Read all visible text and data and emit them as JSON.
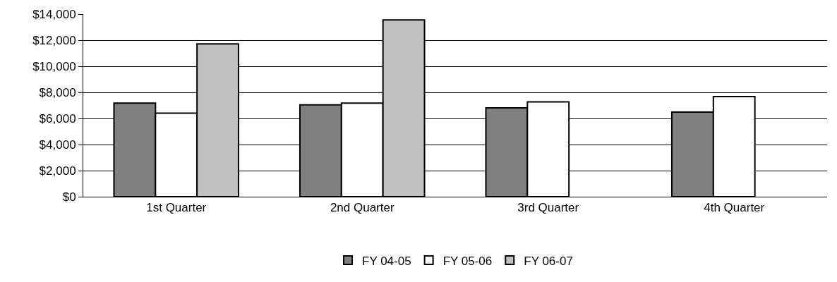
{
  "chart_data": {
    "type": "bar",
    "categories": [
      "1st Quarter",
      "2nd Quarter",
      "3rd Quarter",
      "4th Quarter"
    ],
    "series": [
      {
        "name": "FY 04-05",
        "color": "#808080",
        "values": [
          7170,
          7040,
          6810,
          6480
        ]
      },
      {
        "name": "FY 05-06",
        "color": "#ffffff",
        "values": [
          6400,
          7170,
          7270,
          7680
        ]
      },
      {
        "name": "FY 06-07",
        "color": "#c0c0c0",
        "values": [
          11720,
          13560,
          null,
          null
        ]
      }
    ],
    "ylim": [
      0,
      14000
    ],
    "yticks": [
      {
        "value": 0,
        "label": "$0"
      },
      {
        "value": 2000,
        "label": "$2,000"
      },
      {
        "value": 4000,
        "label": "$4,000"
      },
      {
        "value": 6000,
        "label": "$6,000"
      },
      {
        "value": 8000,
        "label": "$8,000"
      },
      {
        "value": 10000,
        "label": "$10,000"
      },
      {
        "value": 12000,
        "label": "$12,000"
      },
      {
        "value": 14000,
        "label": "$14,000"
      }
    ],
    "grid": "y",
    "legend": "bottom"
  }
}
